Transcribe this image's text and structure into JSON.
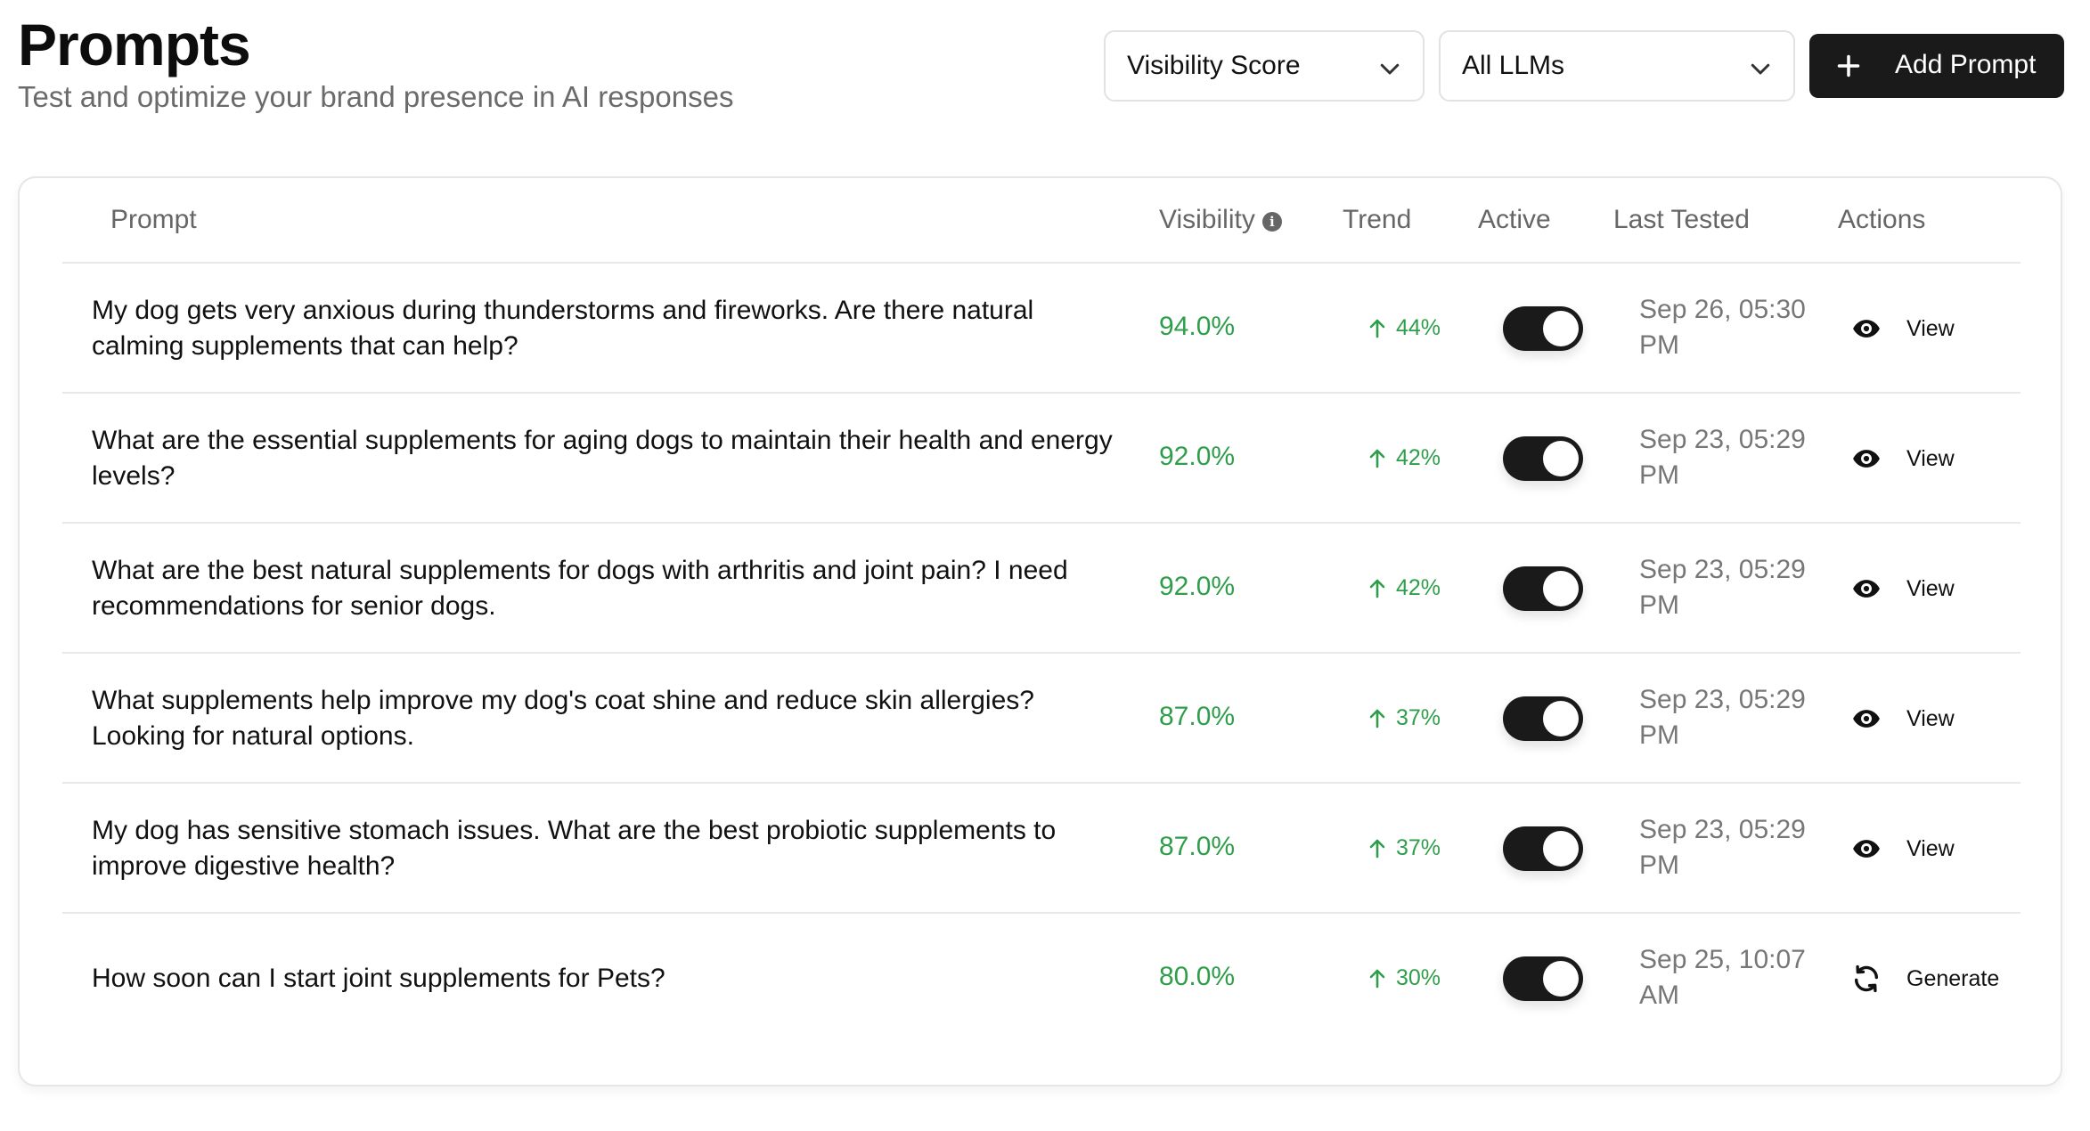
{
  "header": {
    "title": "Prompts",
    "subtitle": "Test and optimize your brand presence in AI responses",
    "metric_select": {
      "value": "Visibility Score",
      "icon": "chevron-down-icon"
    },
    "llm_select": {
      "value": "All LLMs",
      "icon": "chevron-down-icon"
    },
    "add_button": {
      "label": "Add Prompt",
      "icon": "plus-icon"
    }
  },
  "table": {
    "columns": {
      "prompt": "Prompt",
      "visibility": "Visibility",
      "trend": "Trend",
      "active": "Active",
      "last_tested": "Last Tested",
      "actions": "Actions"
    },
    "rows": [
      {
        "prompt": "My dog gets very anxious during thunderstorms and fireworks. Are there natural calming supplements that can help?",
        "visibility": "94.0%",
        "trend": "44%",
        "active": true,
        "last_tested": "Sep 26, 05:30 PM",
        "action": "View",
        "action_icon": "eye-icon"
      },
      {
        "prompt": "What are the essential supplements for aging dogs to maintain their health and energy levels?",
        "visibility": "92.0%",
        "trend": "42%",
        "active": true,
        "last_tested": "Sep 23, 05:29 PM",
        "action": "View",
        "action_icon": "eye-icon"
      },
      {
        "prompt": "What are the best natural supplements for dogs with arthritis and joint pain? I need recommendations for senior dogs.",
        "visibility": "92.0%",
        "trend": "42%",
        "active": true,
        "last_tested": "Sep 23, 05:29 PM",
        "action": "View",
        "action_icon": "eye-icon"
      },
      {
        "prompt": "What supplements help improve my dog's coat shine and reduce skin allergies? Looking for natural options.",
        "visibility": "87.0%",
        "trend": "37%",
        "active": true,
        "last_tested": "Sep 23, 05:29 PM",
        "action": "View",
        "action_icon": "eye-icon"
      },
      {
        "prompt": "My dog has sensitive stomach issues. What are the best probiotic supplements to improve digestive health?",
        "visibility": "87.0%",
        "trend": "37%",
        "active": true,
        "last_tested": "Sep 23, 05:29 PM",
        "action": "View",
        "action_icon": "eye-icon"
      },
      {
        "prompt": "How soon can I start joint supplements for Pets?",
        "visibility": "80.0%",
        "trend": "30%",
        "active": true,
        "last_tested": "Sep 25, 10:07 AM",
        "action": "Generate",
        "action_icon": "refresh-icon"
      }
    ]
  },
  "colors": {
    "positive": "#2e9e4a",
    "primary_button": "#1a1a1a",
    "muted_text": "#6b6b6b",
    "border": "#e6e6e6"
  }
}
